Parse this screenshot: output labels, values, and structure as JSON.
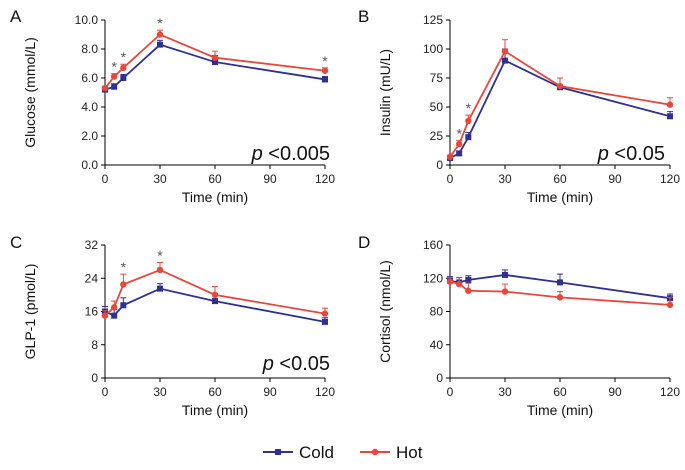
{
  "colors": {
    "cold": "#2e3192",
    "hot": "#e8483b",
    "axis": "#000000",
    "star": "#555555",
    "text": "#222222"
  },
  "legend": [
    {
      "name": "Cold",
      "color": "#2e3192"
    },
    {
      "name": "Hot",
      "color": "#e8483b"
    }
  ],
  "chart_data": [
    {
      "type": "line",
      "panel_label": "A",
      "xlabel": "Time (min)",
      "ylabel": "Glucose (mmol/L)",
      "xticks": [
        0,
        30,
        60,
        90,
        120
      ],
      "yticks": [
        "0.0",
        "2.0",
        "4.0",
        "6.0",
        "8.0",
        "10.0"
      ],
      "xlim": [
        0,
        120
      ],
      "ylim": [
        0,
        10
      ],
      "annotation": {
        "p": "p",
        "rest": " <0.005"
      },
      "significant_x": [
        5,
        10,
        30,
        120
      ],
      "series": [
        {
          "name": "Cold",
          "x": [
            0,
            5,
            10,
            30,
            60,
            120
          ],
          "y": [
            5.2,
            5.4,
            6.0,
            8.3,
            7.1,
            5.9
          ],
          "err": [
            0.15,
            0.2,
            0.25,
            0.3,
            0.45,
            0.2
          ]
        },
        {
          "name": "Hot",
          "x": [
            0,
            5,
            10,
            30,
            60,
            120
          ],
          "y": [
            5.3,
            6.1,
            6.7,
            9.0,
            7.4,
            6.5
          ],
          "err": [
            0.15,
            0.2,
            0.25,
            0.3,
            0.45,
            0.2
          ]
        }
      ]
    },
    {
      "type": "line",
      "panel_label": "B",
      "xlabel": "Time (min)",
      "ylabel": "Insulin (mU/L)",
      "xticks": [
        0,
        30,
        60,
        90,
        120
      ],
      "yticks": [
        "0",
        "25",
        "50",
        "75",
        "100",
        "125"
      ],
      "xlim": [
        0,
        120
      ],
      "ylim": [
        0,
        125
      ],
      "annotation": {
        "p": "p",
        "rest": " <0.05"
      },
      "significant_x": [
        5,
        10
      ],
      "series": [
        {
          "name": "Cold",
          "x": [
            0,
            5,
            10,
            30,
            60,
            120
          ],
          "y": [
            6,
            10,
            24,
            90,
            67,
            42
          ],
          "err": [
            1.5,
            2,
            4,
            10,
            8,
            4
          ]
        },
        {
          "name": "Hot",
          "x": [
            0,
            5,
            10,
            30,
            60,
            120
          ],
          "y": [
            7,
            18,
            38,
            98,
            68,
            52
          ],
          "err": [
            1.5,
            3,
            5,
            10,
            7,
            6
          ]
        }
      ]
    },
    {
      "type": "line",
      "panel_label": "C",
      "xlabel": "Time (min)",
      "ylabel": "GLP-1 (pmol/L)",
      "xticks": [
        0,
        30,
        60,
        90,
        120
      ],
      "yticks": [
        "0",
        "8",
        "16",
        "24",
        "32"
      ],
      "xlim": [
        0,
        120
      ],
      "ylim": [
        0,
        32
      ],
      "annotation": {
        "p": "p",
        "rest": " <0.05"
      },
      "significant_x": [
        10,
        30
      ],
      "series": [
        {
          "name": "Cold",
          "x": [
            0,
            5,
            10,
            30,
            60,
            120
          ],
          "y": [
            16,
            15,
            17.5,
            21.5,
            18.5,
            13.5
          ],
          "err": [
            1.2,
            1.5,
            1.8,
            1.2,
            1.8,
            1
          ]
        },
        {
          "name": "Hot",
          "x": [
            0,
            5,
            10,
            30,
            60,
            120
          ],
          "y": [
            15,
            17,
            22.5,
            26,
            20,
            15.5
          ],
          "err": [
            1.2,
            1.5,
            2.5,
            1.8,
            2,
            1.3
          ]
        }
      ]
    },
    {
      "type": "line",
      "panel_label": "D",
      "xlabel": "Time (min)",
      "ylabel": "Cortisol (nmol/L)",
      "xticks": [
        0,
        30,
        60,
        90,
        120
      ],
      "yticks": [
        "0",
        "40",
        "80",
        "120",
        "160"
      ],
      "xlim": [
        0,
        120
      ],
      "ylim": [
        0,
        160
      ],
      "annotation": null,
      "significant_x": [],
      "series": [
        {
          "name": "Cold",
          "x": [
            0,
            5,
            10,
            30,
            60,
            120
          ],
          "y": [
            117,
            115,
            118,
            124,
            115,
            96
          ],
          "err": [
            5,
            6,
            5,
            6,
            10,
            5
          ]
        },
        {
          "name": "Hot",
          "x": [
            0,
            5,
            10,
            30,
            60,
            120
          ],
          "y": [
            116,
            113,
            105,
            104,
            97,
            88
          ],
          "err": [
            5,
            8,
            9,
            9,
            7,
            9
          ]
        }
      ]
    }
  ]
}
